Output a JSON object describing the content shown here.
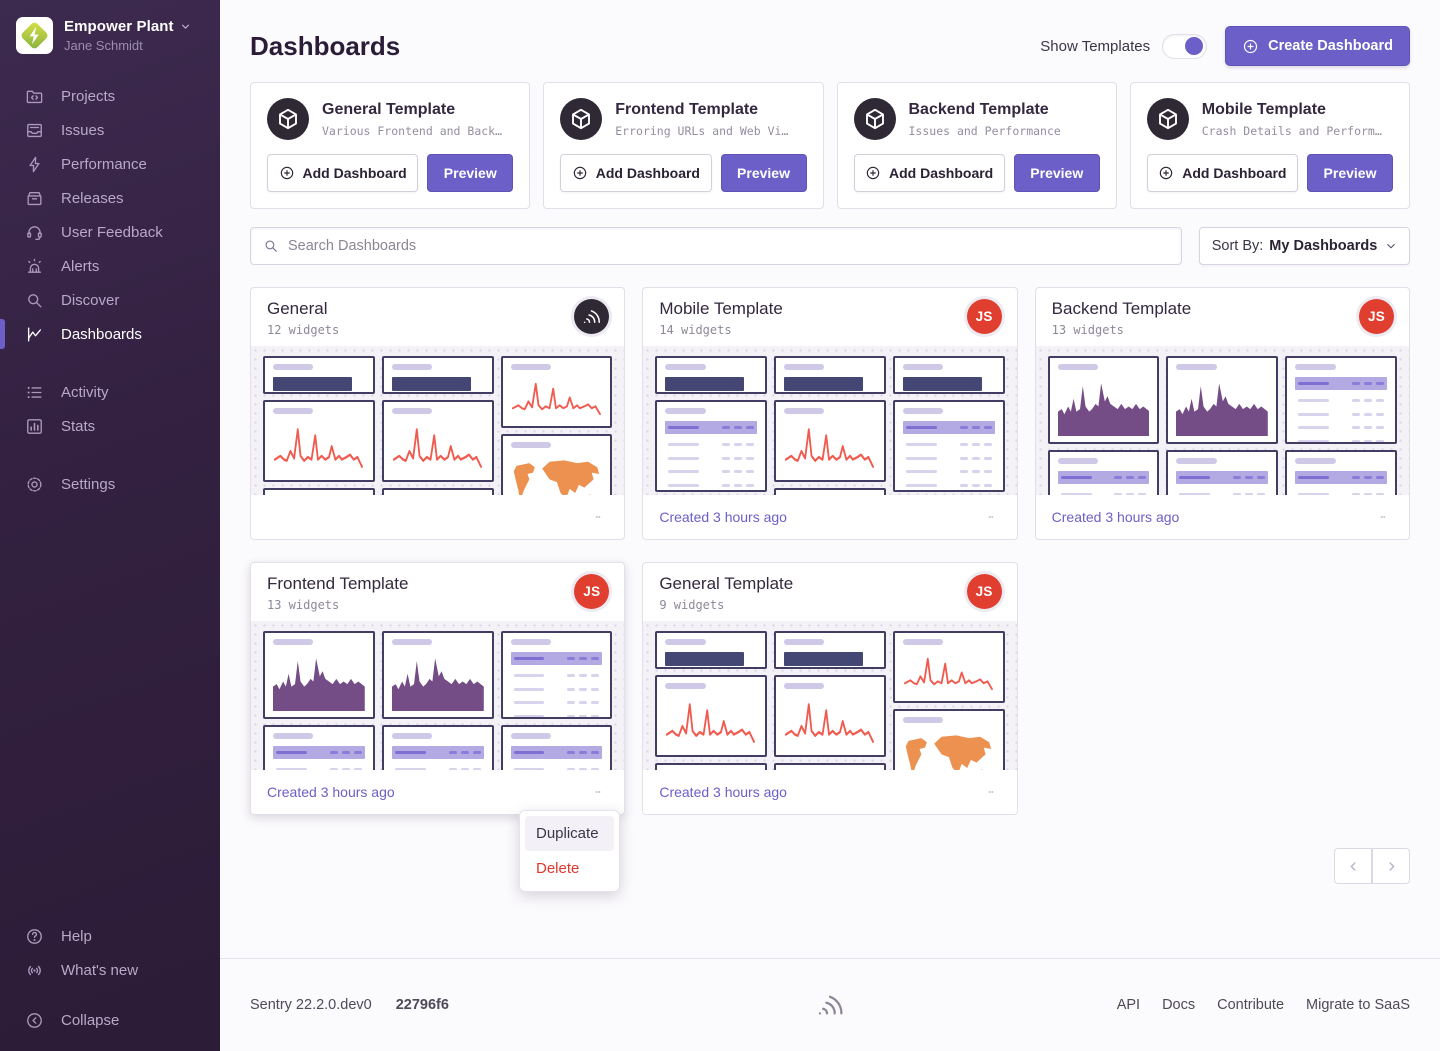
{
  "colors": {
    "accent": "#6c5fc7",
    "danger": "#e0382c",
    "line_chart": "#f05b4f",
    "area_chart": "#744c86",
    "map_fill": "#ec9150",
    "big_number": "#444674",
    "avatar_red": "#e03e2f",
    "avatar_dark": "#2f2936"
  },
  "sidebar": {
    "org_name": "Empower Plant",
    "user_name": "Jane Schmidt",
    "org_logo_icon": "org-logo-icon",
    "sections": [
      {
        "items": [
          {
            "label": "Projects",
            "icon": "projects-icon"
          },
          {
            "label": "Issues",
            "icon": "issues-icon"
          },
          {
            "label": "Performance",
            "icon": "performance-icon"
          },
          {
            "label": "Releases",
            "icon": "releases-icon"
          },
          {
            "label": "User Feedback",
            "icon": "user-feedback-icon"
          },
          {
            "label": "Alerts",
            "icon": "alerts-icon"
          },
          {
            "label": "Discover",
            "icon": "discover-icon"
          },
          {
            "label": "Dashboards",
            "icon": "dashboards-icon",
            "active": true
          }
        ]
      },
      {
        "items": [
          {
            "label": "Activity",
            "icon": "activity-icon"
          },
          {
            "label": "Stats",
            "icon": "stats-icon"
          }
        ]
      },
      {
        "items": [
          {
            "label": "Settings",
            "icon": "settings-icon"
          }
        ]
      }
    ],
    "help_items": [
      {
        "label": "Help",
        "icon": "help-icon"
      },
      {
        "label": "What's new",
        "icon": "whats-new-icon"
      }
    ],
    "collapse": {
      "label": "Collapse",
      "icon": "collapse-icon"
    }
  },
  "header": {
    "title": "Dashboards",
    "show_templates_label": "Show Templates",
    "toggle_on": true,
    "create_button_label": "Create Dashboard"
  },
  "templates": [
    {
      "name": "General Template",
      "description": "Various Frontend and Back…",
      "add_label": "Add Dashboard",
      "preview_label": "Preview"
    },
    {
      "name": "Frontend Template",
      "description": "Erroring URLs and Web Vi…",
      "add_label": "Add Dashboard",
      "preview_label": "Preview"
    },
    {
      "name": "Backend Template",
      "description": "Issues and Performance",
      "add_label": "Add Dashboard",
      "preview_label": "Preview"
    },
    {
      "name": "Mobile Template",
      "description": "Crash Details and Perform…",
      "add_label": "Add Dashboard",
      "preview_label": "Preview"
    }
  ],
  "toolbar": {
    "search_placeholder": "Search Dashboards",
    "sort_label": "Sort By:",
    "sort_value": "My Dashboards"
  },
  "dashboards": [
    {
      "name": "General",
      "widget_count": "12 widgets",
      "created": "",
      "avatar": {
        "type": "org",
        "icon": "sentry-logo-icon"
      },
      "preview_columns": [
        [
          "bignumber",
          "line",
          "sliver"
        ],
        [
          "bignumber",
          "line",
          "sliver"
        ],
        [
          "line-tall",
          "map"
        ]
      ]
    },
    {
      "name": "Mobile Template",
      "widget_count": "14 widgets",
      "created": "Created 3 hours ago",
      "avatar": {
        "type": "user",
        "initials": "JS"
      },
      "preview_columns": [
        [
          "bignumber",
          "table",
          "sliver"
        ],
        [
          "bignumber",
          "line",
          "sliver"
        ],
        [
          "bignumber",
          "table",
          "sliver"
        ]
      ]
    },
    {
      "name": "Backend Template",
      "widget_count": "13 widgets",
      "created": "Created 3 hours ago",
      "avatar": {
        "type": "user",
        "initials": "JS"
      },
      "preview_columns": [
        [
          "area",
          "tablehead"
        ],
        [
          "area",
          "tablehead"
        ],
        [
          "table-tall",
          "tablehead"
        ]
      ]
    },
    {
      "name": "Frontend Template",
      "widget_count": "13 widgets",
      "created": "Created 3 hours ago",
      "avatar": {
        "type": "user",
        "initials": "JS"
      },
      "menu_open": true,
      "preview_columns": [
        [
          "area",
          "tablehead"
        ],
        [
          "area",
          "tablehead"
        ],
        [
          "table-tall",
          "tablehead"
        ]
      ]
    },
    {
      "name": "General Template",
      "widget_count": "9 widgets",
      "created": "Created 3 hours ago",
      "avatar": {
        "type": "user",
        "initials": "JS"
      },
      "preview_columns": [
        [
          "bignumber",
          "line",
          "sliver"
        ],
        [
          "bignumber",
          "line",
          "sliver"
        ],
        [
          "line-tall",
          "map"
        ]
      ]
    }
  ],
  "context_menu": {
    "items": [
      {
        "label": "Duplicate",
        "state": "highlighted"
      },
      {
        "label": "Delete",
        "state": "danger"
      }
    ]
  },
  "footer": {
    "version": "Sentry 22.2.0.dev0",
    "build": "22796f6",
    "links": [
      "API",
      "Docs",
      "Contribute",
      "Migrate to SaaS"
    ]
  }
}
